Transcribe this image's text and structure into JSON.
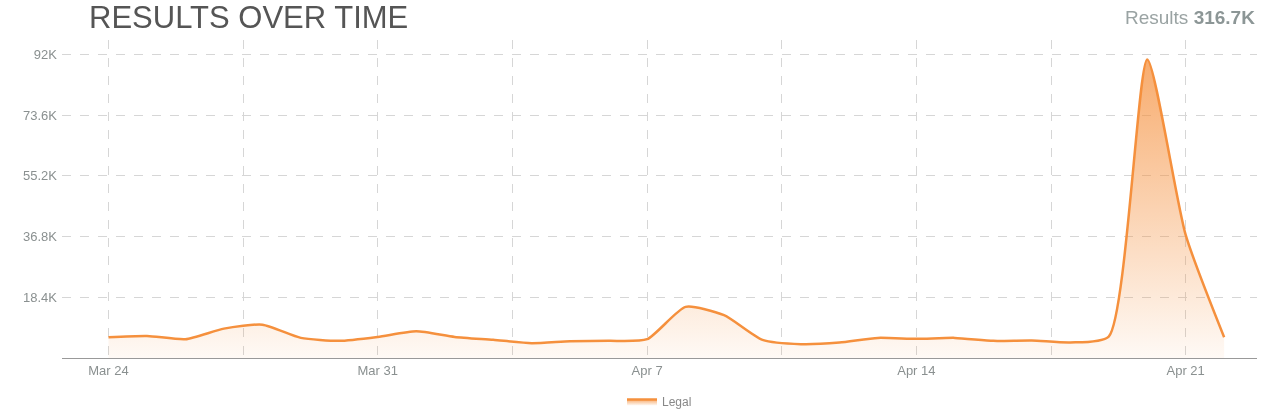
{
  "chart_data": {
    "type": "area",
    "title": "RESULTS OVER TIME",
    "annotations": [
      "Results 316.7K"
    ],
    "x": [
      "--03-24",
      "--03-25",
      "--03-26",
      "--03-27",
      "--03-28",
      "--03-29",
      "--03-30",
      "--03-31",
      "--04-01",
      "--04-02",
      "--04-03",
      "--04-04",
      "--04-05",
      "--04-06",
      "--04-07",
      "--04-08",
      "--04-09",
      "--04-10",
      "--04-11",
      "--04-12",
      "--04-13",
      "--04-14",
      "--04-15",
      "--04-16",
      "--04-17",
      "--04-18",
      "--04-19",
      "--04-20",
      "--04-21",
      "--04-22"
    ],
    "series": [
      {
        "name": "Legal",
        "color": "#f5903d",
        "values": [
          6300,
          6700,
          5700,
          8900,
          10100,
          6100,
          5200,
          6400,
          8100,
          6400,
          5500,
          4500,
          5100,
          5200,
          5700,
          15500,
          13000,
          5500,
          4200,
          4700,
          6100,
          5800,
          6100,
          5200,
          5300,
          4700,
          6500,
          90500,
          37300,
          6300
        ]
      }
    ],
    "xlim": [
      "--03-22T19:00",
      "--04-22T20:30"
    ],
    "xticks": [
      {
        "value": "--03-24",
        "label": "Mar 24"
      },
      {
        "value": "--03-27T12:00",
        "label": null
      },
      {
        "value": "--03-31",
        "label": "Mar 31"
      },
      {
        "value": "--04-03T12:00",
        "label": null
      },
      {
        "value": "--04-07",
        "label": "Apr 7"
      },
      {
        "value": "--04-10T12:00",
        "label": null
      },
      {
        "value": "--04-14",
        "label": "Apr 14"
      },
      {
        "value": "--04-17T12:00",
        "label": null
      },
      {
        "value": "--04-21",
        "label": "Apr 21"
      }
    ],
    "ylim": [
      0,
      96400
    ],
    "yticks": [
      {
        "value": 18400,
        "label": "18.4K"
      },
      {
        "value": 36800,
        "label": "36.8K"
      },
      {
        "value": 55200,
        "label": "55.2K"
      },
      {
        "value": 73600,
        "label": "73.6K"
      },
      {
        "value": 92000,
        "label": "92K"
      }
    ],
    "grid": true,
    "legend": "bottom",
    "marker": "none",
    "line_style": "solid"
  }
}
